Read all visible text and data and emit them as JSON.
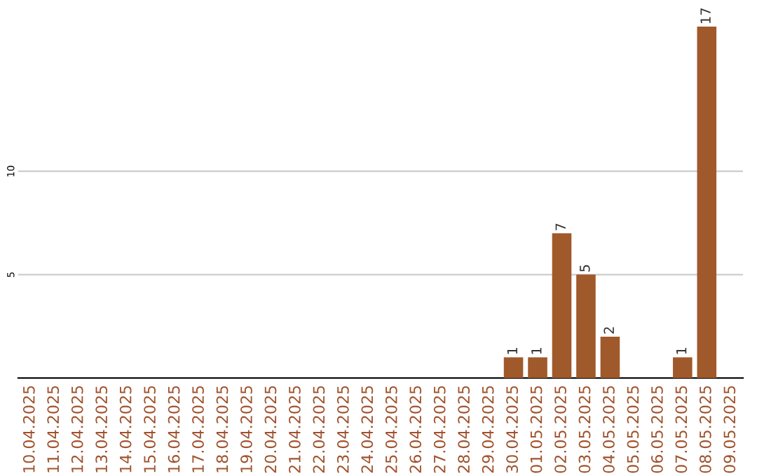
{
  "chart_data": {
    "type": "bar",
    "categories": [
      "10.04.2025",
      "11.04.2025",
      "12.04.2025",
      "13.04.2025",
      "14.04.2025",
      "15.04.2025",
      "16.04.2025",
      "17.04.2025",
      "18.04.2025",
      "19.04.2025",
      "20.04.2025",
      "21.04.2025",
      "22.04.2025",
      "23.04.2025",
      "24.04.2025",
      "25.04.2025",
      "26.04.2025",
      "27.04.2025",
      "28.04.2025",
      "29.04.2025",
      "30.04.2025",
      "01.05.2025",
      "02.05.2025",
      "03.05.2025",
      "04.05.2025",
      "05.05.2025",
      "06.05.2025",
      "07.05.2025",
      "08.05.2025",
      "09.05.2025"
    ],
    "values": [
      0,
      0,
      0,
      0,
      0,
      0,
      0,
      0,
      0,
      0,
      0,
      0,
      0,
      0,
      0,
      0,
      0,
      0,
      0,
      0,
      1,
      1,
      7,
      5,
      2,
      0,
      0,
      1,
      17,
      0
    ],
    "value_labels": [
      null,
      null,
      null,
      null,
      null,
      null,
      null,
      null,
      null,
      null,
      null,
      null,
      null,
      null,
      null,
      null,
      null,
      null,
      null,
      null,
      "1",
      "1",
      "7",
      "5",
      "2",
      null,
      null,
      "1",
      "17",
      null
    ],
    "color": "#a0592a",
    "ylim": [
      0,
      17
    ],
    "yticks": [
      5,
      10
    ],
    "grid": "y"
  }
}
